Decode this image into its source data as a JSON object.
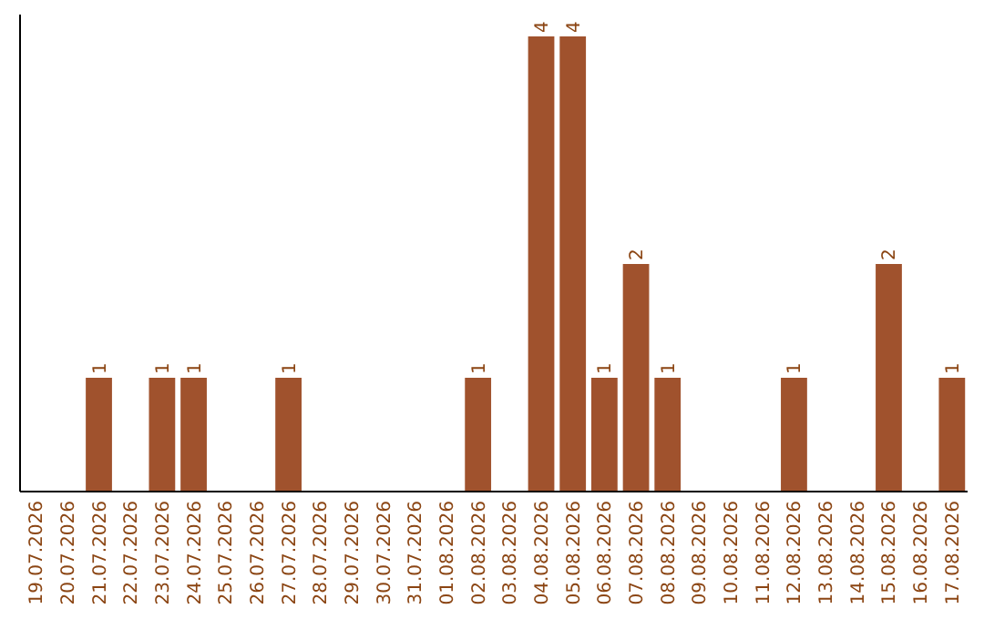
{
  "chart_data": {
    "type": "bar",
    "categories": [
      "19.07.2026",
      "20.07.2026",
      "21.07.2026",
      "22.07.2026",
      "23.07.2026",
      "24.07.2026",
      "25.07.2026",
      "26.07.2026",
      "27.07.2026",
      "28.07.2026",
      "29.07.2026",
      "30.07.2026",
      "31.07.2026",
      "01.08.2026",
      "02.08.2026",
      "03.08.2026",
      "04.08.2026",
      "05.08.2026",
      "06.08.2026",
      "07.08.2026",
      "08.08.2026",
      "09.08.2026",
      "10.08.2026",
      "11.08.2026",
      "12.08.2026",
      "13.08.2026",
      "14.08.2026",
      "15.08.2026",
      "16.08.2026",
      "17.08.2026"
    ],
    "values": [
      0,
      0,
      1,
      0,
      1,
      1,
      0,
      0,
      1,
      0,
      0,
      0,
      0,
      0,
      1,
      0,
      4,
      4,
      1,
      2,
      1,
      0,
      0,
      0,
      1,
      0,
      0,
      2,
      0,
      1
    ],
    "value_labels": [
      null,
      null,
      "1",
      null,
      "1",
      "1",
      null,
      null,
      "1",
      null,
      null,
      null,
      null,
      null,
      "1",
      null,
      "4",
      "4",
      "1",
      "2",
      "1",
      null,
      null,
      null,
      "1",
      null,
      null,
      "2",
      null,
      "1"
    ],
    "color": "#a0522d",
    "tick_labels": "x"
  }
}
